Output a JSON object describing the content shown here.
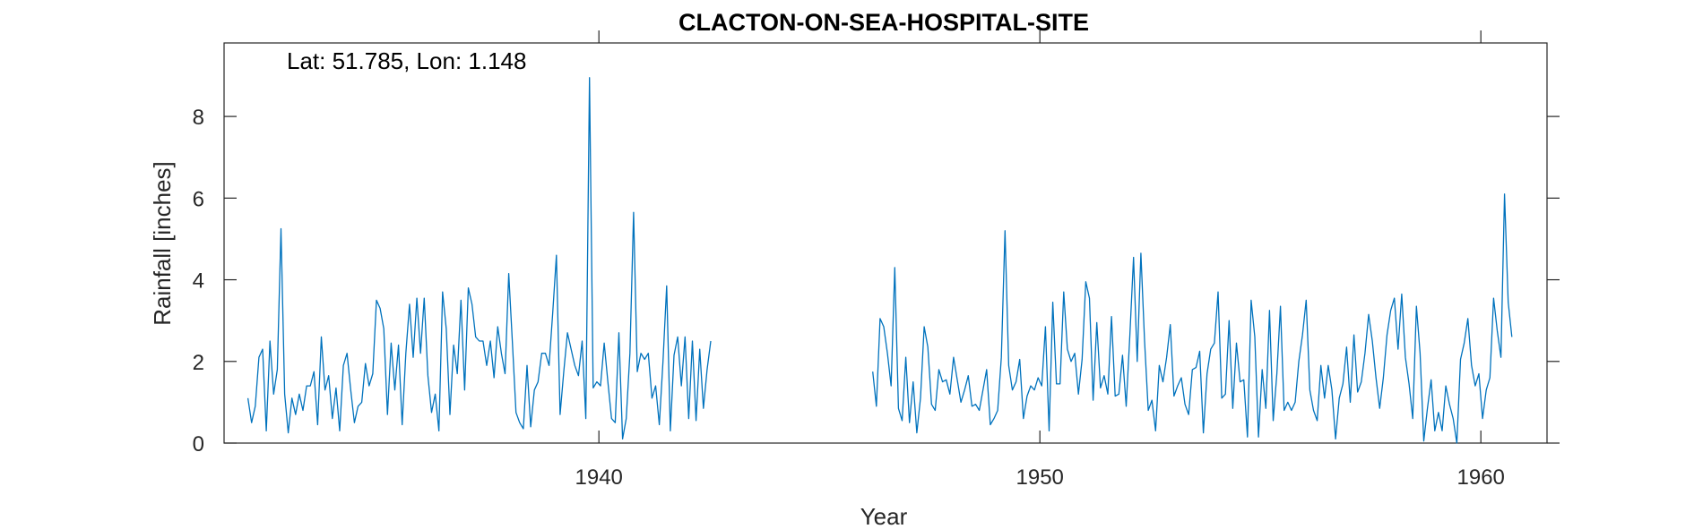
{
  "chart_data": {
    "type": "line",
    "title": "CLACTON-ON-SEA-HOSPITAL-SITE",
    "annotation": "Lat: 51.785, Lon: 1.148",
    "xlabel": "Year",
    "ylabel": "Rainfall [inches]",
    "xlim": [
      1931.5,
      1961.5
    ],
    "ylim": [
      0,
      9.8
    ],
    "xticks": [
      1940,
      1950,
      1960
    ],
    "yticks": [
      0,
      2,
      4,
      6,
      8
    ],
    "grid": false,
    "line_color": "#0072BD",
    "series": [
      {
        "segments": [
          {
            "start_year": 1932.04,
            "step_years": 0.0833,
            "values": [
              1.1,
              0.5,
              0.9,
              2.1,
              2.3,
              0.3,
              2.5,
              1.2,
              1.8,
              5.25,
              1.2,
              0.25,
              1.1,
              0.7,
              1.2,
              0.8,
              1.4,
              1.4,
              1.75,
              0.45,
              2.6,
              1.3,
              1.65,
              0.6,
              1.35,
              0.3,
              1.9,
              2.2,
              1.3,
              0.5,
              0.9,
              1.0,
              1.95,
              1.4,
              1.7,
              3.5,
              3.3,
              2.8,
              0.7,
              2.45,
              1.3,
              2.4,
              0.45,
              2.2,
              3.4,
              2.1,
              3.55,
              2.2,
              3.55,
              1.65,
              0.75,
              1.2,
              0.3,
              3.7,
              2.8,
              0.7,
              2.4,
              1.7,
              3.5,
              1.3,
              3.8,
              3.4,
              2.6,
              2.5,
              2.5,
              1.9,
              2.5,
              1.6,
              2.85,
              2.2,
              1.7,
              4.15,
              2.5,
              0.75,
              0.5,
              0.35,
              1.9,
              0.4,
              1.3,
              1.5,
              2.2,
              2.2,
              1.9,
              3.2,
              4.6,
              0.7,
              1.75,
              2.7,
              2.3,
              1.9,
              1.65,
              2.5,
              0.6,
              8.95,
              1.35,
              1.5,
              1.4,
              2.45,
              1.5,
              0.6,
              0.5,
              2.7,
              0.1,
              0.6,
              2.2,
              5.65,
              1.75,
              2.2,
              2.05,
              2.2,
              1.1,
              1.4,
              0.45,
              2.0,
              3.85,
              0.3,
              2.15,
              2.6,
              1.4,
              2.6,
              0.6,
              2.5,
              0.55,
              2.3,
              0.85,
              1.8,
              2.5
            ]
          },
          {
            "start_year": 1946.21,
            "step_years": 0.0833,
            "values": [
              1.75,
              0.9,
              3.05,
              2.85,
              2.2,
              1.4,
              4.3,
              0.85,
              0.55,
              2.1,
              0.5,
              1.5,
              0.25,
              1.1,
              2.85,
              2.35,
              0.95,
              0.8,
              1.8,
              1.5,
              1.55,
              1.2,
              2.1,
              1.55,
              1.0,
              1.3,
              1.65,
              0.9,
              0.95,
              0.8,
              1.3,
              1.8,
              0.45,
              0.6,
              0.8,
              2.1,
              5.2,
              1.9,
              1.3,
              1.5,
              2.05,
              0.6,
              1.15,
              1.4,
              1.3,
              1.6,
              1.4,
              2.85,
              0.3,
              3.45,
              1.45,
              1.45,
              3.7,
              2.3,
              2.0,
              2.2,
              1.2,
              2.05,
              3.95,
              3.55,
              1.05,
              2.95,
              1.35,
              1.65,
              1.2,
              3.1,
              1.15,
              1.2,
              2.15,
              0.9,
              2.65,
              4.55,
              2.0,
              4.65,
              2.5,
              0.8,
              1.05,
              0.3,
              1.9,
              1.5,
              2.1,
              2.9,
              1.15,
              1.4,
              1.6,
              0.95,
              0.7,
              1.8,
              1.85,
              2.25,
              0.25,
              1.7,
              2.3,
              2.45,
              3.7,
              1.1,
              1.2,
              3.0,
              0.85,
              2.45,
              1.5,
              1.55,
              0.15,
              3.5,
              2.6,
              0.15,
              1.8,
              0.85,
              3.25,
              0.55,
              1.7,
              3.35,
              0.8,
              1.0,
              0.8,
              1.0,
              2.0,
              2.65,
              3.5,
              1.3,
              0.8,
              0.55,
              1.9,
              1.1,
              1.9,
              1.3,
              0.1,
              1.1,
              1.45,
              2.35,
              1.0,
              2.65,
              1.25,
              1.5,
              2.2,
              3.15,
              2.5,
              1.6,
              0.85,
              1.6,
              2.65,
              3.25,
              3.55,
              2.3,
              3.65,
              2.1,
              1.45,
              0.6,
              3.35,
              2.2,
              0.05,
              0.85,
              1.55,
              0.3,
              0.75,
              0.3,
              1.4,
              0.95,
              0.6,
              0.0,
              2.05,
              2.45,
              3.05,
              1.9,
              1.4,
              1.7,
              0.6,
              1.3,
              1.6,
              3.55,
              2.75,
              2.1,
              6.1,
              3.45,
              2.6
            ]
          }
        ]
      }
    ]
  }
}
